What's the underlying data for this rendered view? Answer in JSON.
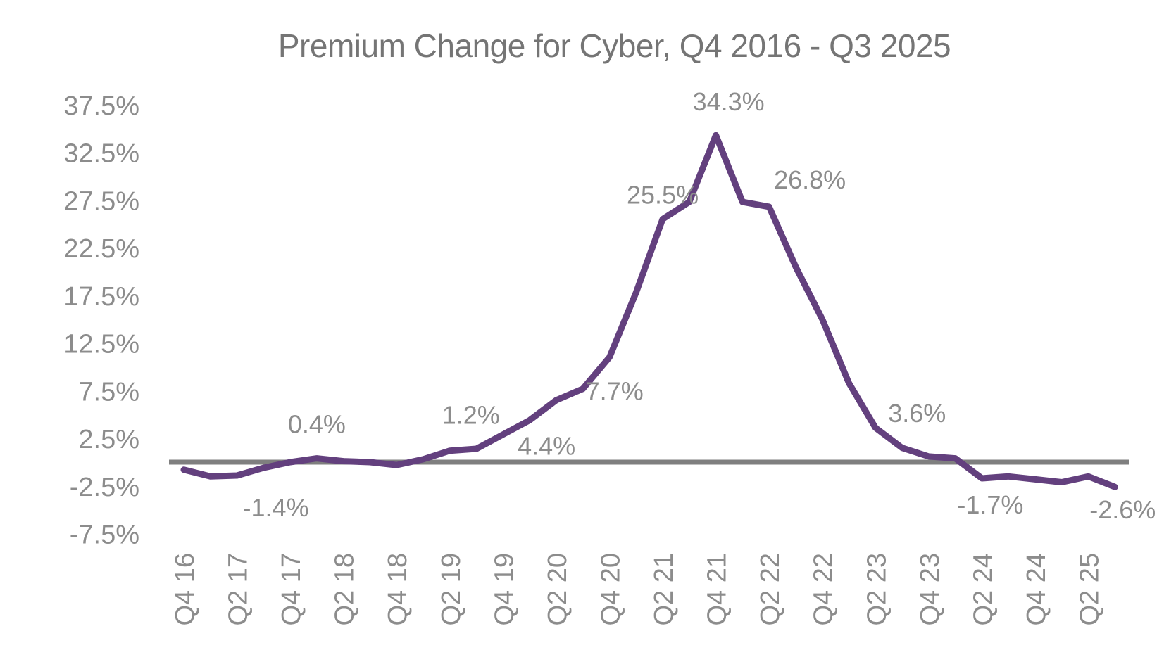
{
  "chart_data": {
    "type": "line",
    "title": "Premium Change for Cyber, Q4 2016 - Q3 2025",
    "xlabel": "",
    "ylabel": "",
    "ylim": [
      -7.5,
      37.5
    ],
    "y_ticks": [
      "37.5%",
      "32.5%",
      "27.5%",
      "22.5%",
      "17.5%",
      "12.5%",
      "7.5%",
      "2.5%",
      "-2.5%",
      "-7.5%"
    ],
    "y_tick_values": [
      37.5,
      32.5,
      27.5,
      22.5,
      17.5,
      12.5,
      7.5,
      2.5,
      -2.5,
      -7.5
    ],
    "x_tick_labels": [
      "Q4 16",
      "Q2 17",
      "Q4 17",
      "Q2 18",
      "Q4 18",
      "Q2 19",
      "Q4 19",
      "Q2 20",
      "Q4 20",
      "Q2 21",
      "Q4 21",
      "Q2 22",
      "Q4 22",
      "Q2 23",
      "Q4 23",
      "Q2 24",
      "Q4 24",
      "Q2 25"
    ],
    "grid": false,
    "legend": "none",
    "categories": [
      "Q4 16",
      "Q1 17",
      "Q2 17",
      "Q3 17",
      "Q4 17",
      "Q1 18",
      "Q2 18",
      "Q3 18",
      "Q4 18",
      "Q1 19",
      "Q2 19",
      "Q3 19",
      "Q4 19",
      "Q1 20",
      "Q2 20",
      "Q3 20",
      "Q4 20",
      "Q1 21",
      "Q2 21",
      "Q3 21",
      "Q4 21",
      "Q1 22",
      "Q2 22",
      "Q3 22",
      "Q4 22",
      "Q1 23",
      "Q2 23",
      "Q3 23",
      "Q4 23",
      "Q1 24",
      "Q2 24",
      "Q3 24",
      "Q4 24",
      "Q1 25",
      "Q2 25",
      "Q3 25"
    ],
    "series": [
      {
        "color": "#63407e",
        "values": [
          -0.8,
          -1.5,
          -1.4,
          -0.6,
          0.0,
          0.4,
          0.1,
          0.0,
          -0.3,
          0.3,
          1.2,
          1.4,
          2.9,
          4.4,
          6.5,
          7.7,
          11.0,
          17.8,
          25.5,
          27.3,
          34.3,
          27.3,
          26.8,
          20.5,
          15.0,
          8.3,
          3.6,
          1.5,
          0.6,
          0.4,
          -1.7,
          -1.5,
          -1.8,
          -2.1,
          -1.5,
          -2.6
        ]
      }
    ],
    "data_labels": [
      {
        "index": 2,
        "text": "-1.4%"
      },
      {
        "index": 5,
        "text": "0.4%"
      },
      {
        "index": 10,
        "text": "1.2%"
      },
      {
        "index": 13,
        "text": "4.4%"
      },
      {
        "index": 15,
        "text": "7.7%"
      },
      {
        "index": 18,
        "text": "25.5%"
      },
      {
        "index": 20,
        "text": "34.3%"
      },
      {
        "index": 22,
        "text": "26.8%"
      },
      {
        "index": 26,
        "text": "3.6%"
      },
      {
        "index": 30,
        "text": "-1.7%"
      },
      {
        "index": 35,
        "text": "-2.6%"
      }
    ],
    "colors": {
      "line": "#63407e",
      "zero_line": "#7f7f7f",
      "text": "#8c8c8c",
      "title": "#757575"
    }
  }
}
